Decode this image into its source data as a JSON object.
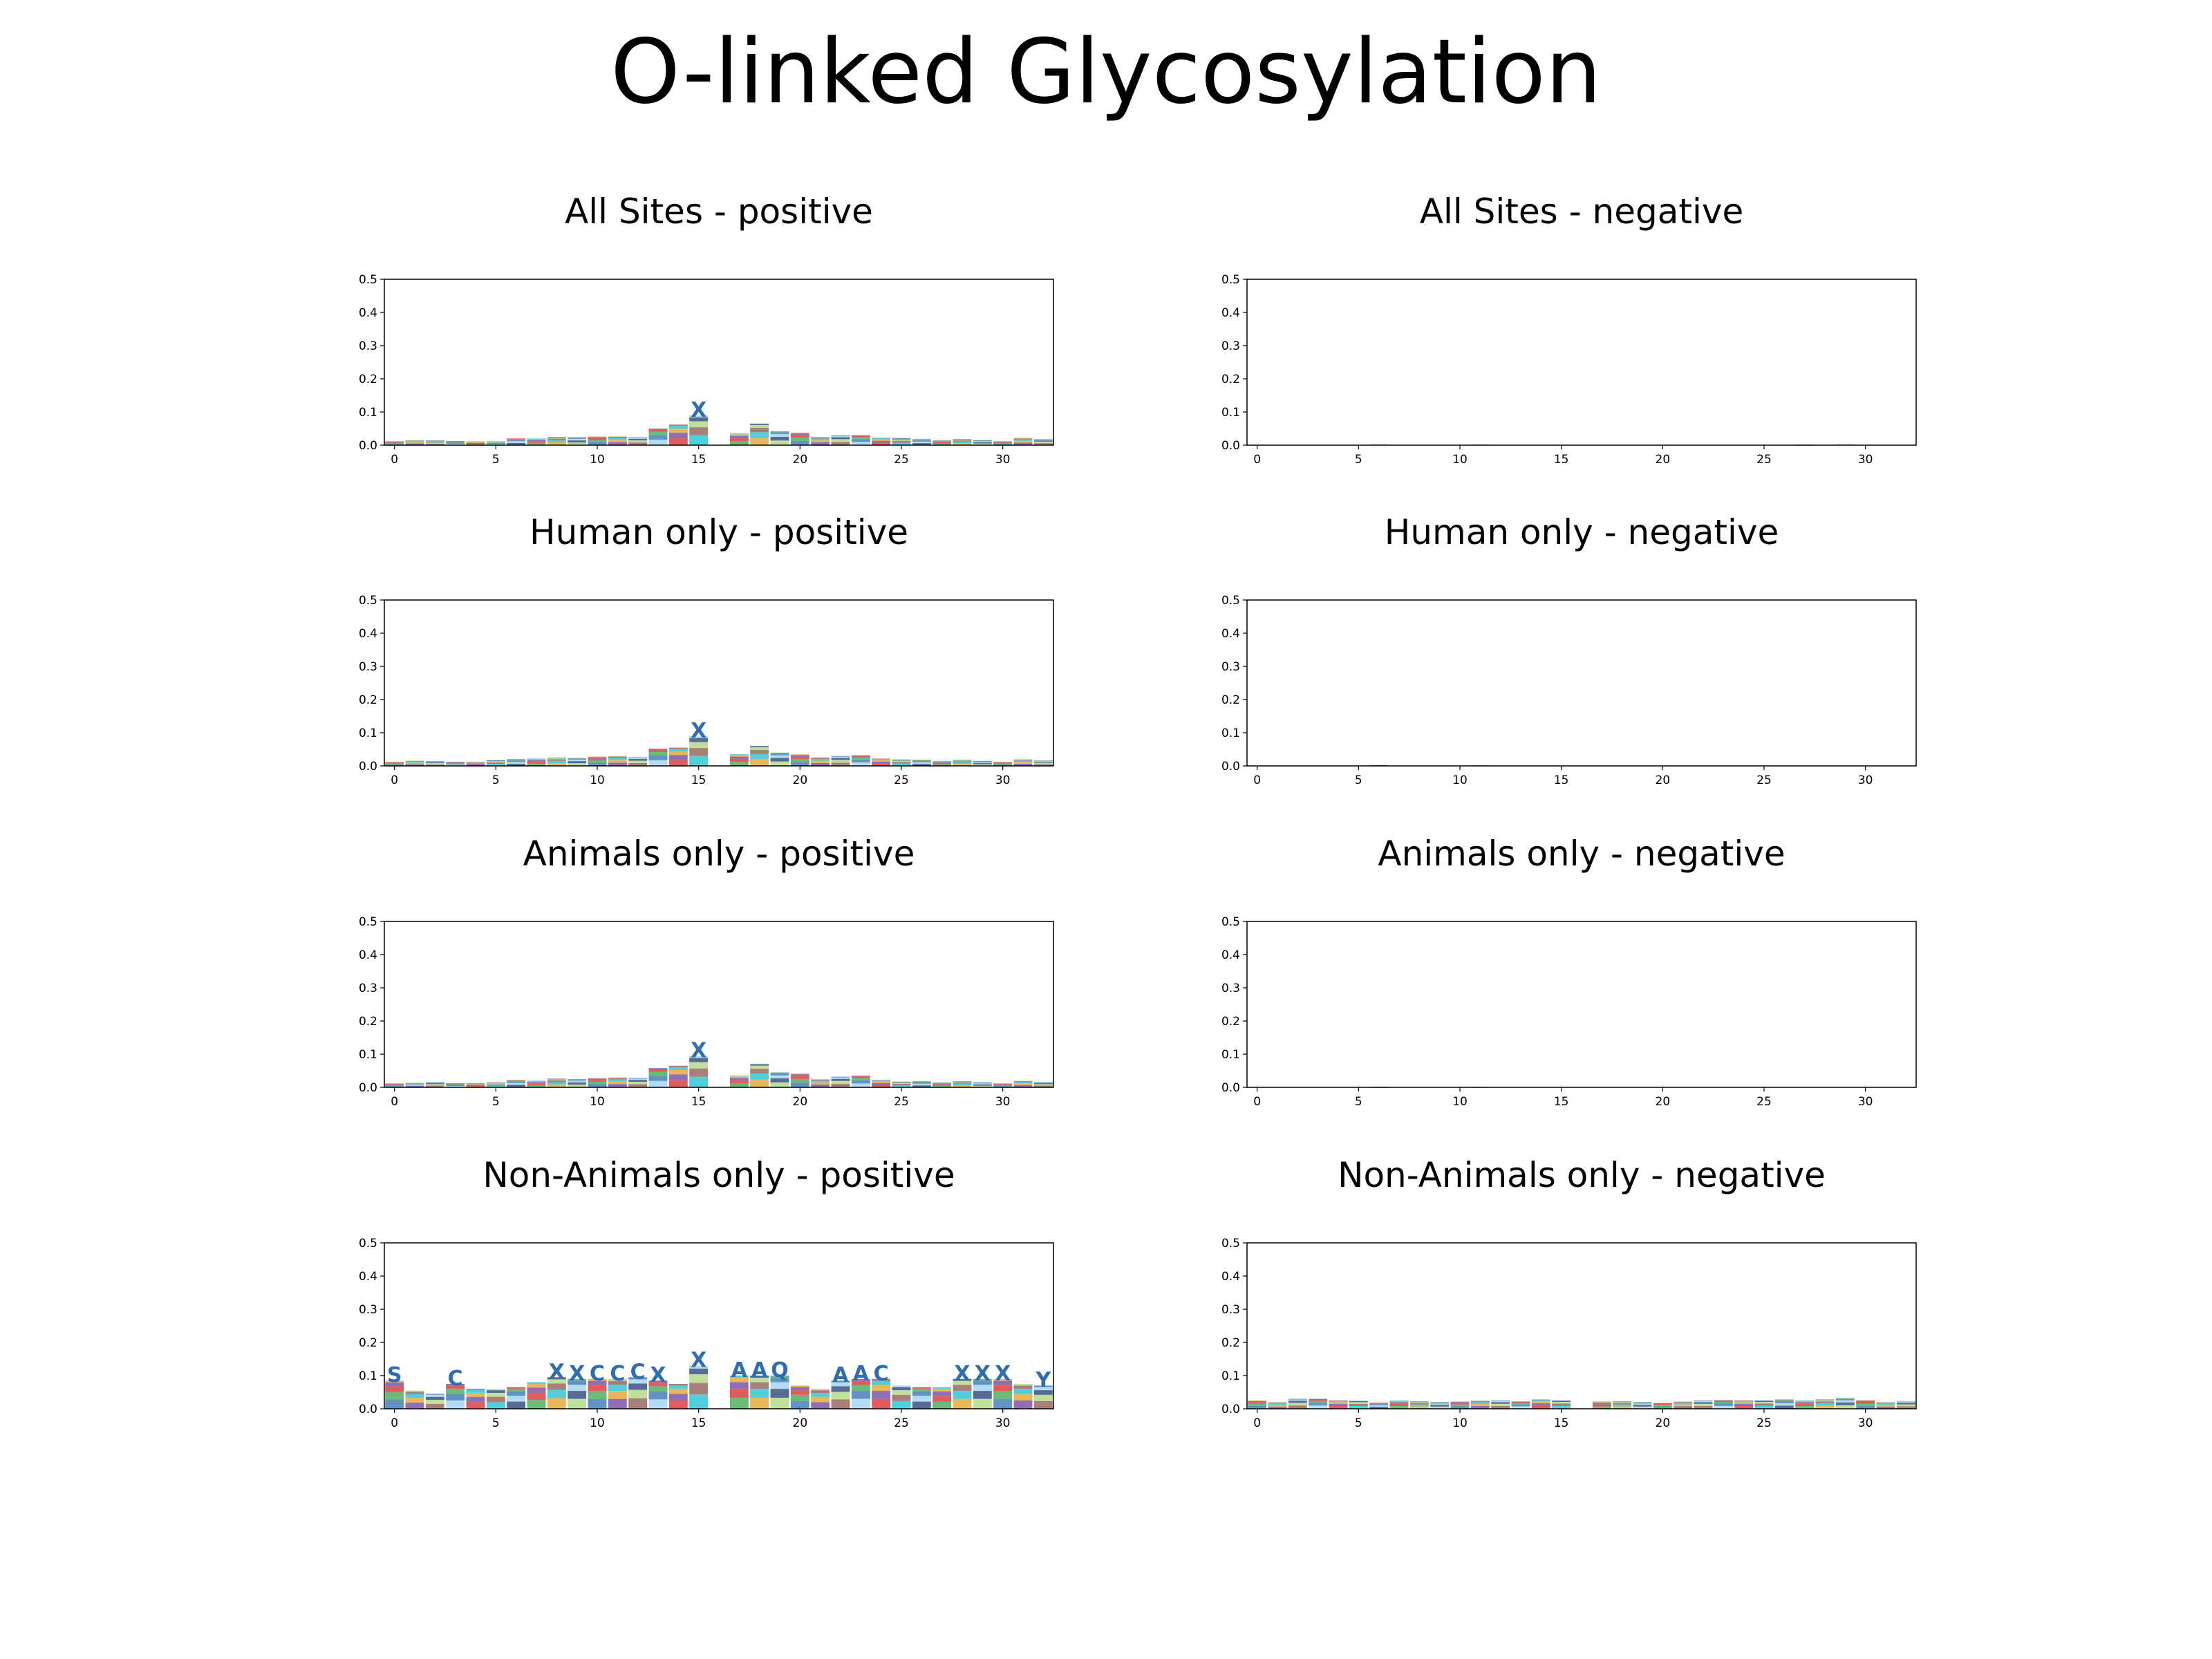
{
  "title": "O-linked Glycosylation",
  "chart_data": [
    {
      "type": "bar",
      "stacked": true,
      "title": "All Sites - positive",
      "x": [
        0,
        1,
        2,
        3,
        4,
        5,
        6,
        7,
        8,
        9,
        10,
        11,
        12,
        13,
        14,
        15,
        16,
        17,
        18,
        19,
        20,
        21,
        22,
        23,
        24,
        25,
        26,
        27,
        28,
        29,
        30,
        31,
        32
      ],
      "values": [
        0.012,
        0.015,
        0.014,
        0.012,
        0.011,
        0.012,
        0.02,
        0.02,
        0.025,
        0.024,
        0.026,
        0.027,
        0.024,
        0.05,
        0.062,
        0.09,
        0.0,
        0.035,
        0.065,
        0.042,
        0.038,
        0.025,
        0.03,
        0.03,
        0.022,
        0.022,
        0.018,
        0.015,
        0.018,
        0.015,
        0.012,
        0.022,
        0.018
      ],
      "xticks": [
        0,
        5,
        10,
        15,
        20,
        25,
        30
      ],
      "yticks": [
        0.0,
        0.1,
        0.2,
        0.3,
        0.4,
        0.5
      ],
      "xlim": [
        -0.5,
        32.5
      ],
      "ylim": [
        0,
        0.5
      ],
      "top_letters": {
        "15": "X"
      }
    },
    {
      "type": "bar",
      "stacked": true,
      "title": "All Sites - negative",
      "x": [
        0,
        1,
        2,
        3,
        4,
        5,
        6,
        7,
        8,
        9,
        10,
        11,
        12,
        13,
        14,
        15,
        16,
        17,
        18,
        19,
        20,
        21,
        22,
        23,
        24,
        25,
        26,
        27,
        28,
        29,
        30,
        31,
        32
      ],
      "values": [
        0.0,
        0.0,
        0.0,
        0.0,
        0.0,
        0.0,
        0.002,
        0.0,
        0.0,
        0.0,
        0.0,
        0.002,
        0.0,
        0.0,
        0.0,
        0.0,
        0.0,
        0.0,
        0.0,
        0.0,
        0.0,
        0.0,
        0.0,
        0.0,
        0.0,
        0.0,
        0.0,
        0.002,
        0.0,
        0.002,
        0.0,
        0.0,
        0.0
      ],
      "xticks": [
        0,
        5,
        10,
        15,
        20,
        25,
        30
      ],
      "yticks": [
        0.0,
        0.1,
        0.2,
        0.3,
        0.4,
        0.5
      ],
      "xlim": [
        -0.5,
        32.5
      ],
      "ylim": [
        0,
        0.5
      ]
    },
    {
      "type": "bar",
      "stacked": true,
      "title": "Human only - positive",
      "x": [
        0,
        1,
        2,
        3,
        4,
        5,
        6,
        7,
        8,
        9,
        10,
        11,
        12,
        13,
        14,
        15,
        16,
        17,
        18,
        19,
        20,
        21,
        22,
        23,
        24,
        25,
        26,
        27,
        28,
        29,
        30,
        31,
        32
      ],
      "values": [
        0.012,
        0.016,
        0.014,
        0.012,
        0.012,
        0.018,
        0.02,
        0.022,
        0.025,
        0.024,
        0.028,
        0.03,
        0.026,
        0.052,
        0.055,
        0.09,
        0.0,
        0.035,
        0.06,
        0.04,
        0.035,
        0.026,
        0.03,
        0.032,
        0.022,
        0.02,
        0.018,
        0.015,
        0.018,
        0.015,
        0.012,
        0.02,
        0.016
      ],
      "xticks": [
        0,
        5,
        10,
        15,
        20,
        25,
        30
      ],
      "yticks": [
        0.0,
        0.1,
        0.2,
        0.3,
        0.4,
        0.5
      ],
      "xlim": [
        -0.5,
        32.5
      ],
      "ylim": [
        0,
        0.5
      ],
      "top_letters": {
        "15": "X"
      }
    },
    {
      "type": "bar",
      "stacked": true,
      "title": "Human only - negative",
      "x": [
        0,
        1,
        2,
        3,
        4,
        5,
        6,
        7,
        8,
        9,
        10,
        11,
        12,
        13,
        14,
        15,
        16,
        17,
        18,
        19,
        20,
        21,
        22,
        23,
        24,
        25,
        26,
        27,
        28,
        29,
        30,
        31,
        32
      ],
      "values": [
        0.0,
        0.0,
        0.0,
        0.0,
        0.0,
        0.0,
        0.002,
        0.0,
        0.0,
        0.0,
        0.0,
        0.002,
        0.0,
        0.0,
        0.0,
        0.0,
        0.0,
        0.0,
        0.0,
        0.0,
        0.0,
        0.0,
        0.0,
        0.0,
        0.0,
        0.0,
        0.0,
        0.0,
        0.0,
        0.0,
        0.0,
        0.0,
        0.0
      ],
      "xticks": [
        0,
        5,
        10,
        15,
        20,
        25,
        30
      ],
      "yticks": [
        0.0,
        0.1,
        0.2,
        0.3,
        0.4,
        0.5
      ],
      "xlim": [
        -0.5,
        32.5
      ],
      "ylim": [
        0,
        0.5
      ]
    },
    {
      "type": "bar",
      "stacked": true,
      "title": "Animals only - positive",
      "x": [
        0,
        1,
        2,
        3,
        4,
        5,
        6,
        7,
        8,
        9,
        10,
        11,
        12,
        13,
        14,
        15,
        16,
        17,
        18,
        19,
        20,
        21,
        22,
        23,
        24,
        25,
        26,
        27,
        28,
        29,
        30,
        31,
        32
      ],
      "values": [
        0.012,
        0.014,
        0.016,
        0.012,
        0.012,
        0.015,
        0.022,
        0.02,
        0.026,
        0.025,
        0.028,
        0.03,
        0.028,
        0.058,
        0.065,
        0.095,
        0.0,
        0.035,
        0.07,
        0.045,
        0.042,
        0.025,
        0.032,
        0.035,
        0.022,
        0.018,
        0.018,
        0.015,
        0.018,
        0.015,
        0.012,
        0.02,
        0.016
      ],
      "xticks": [
        0,
        5,
        10,
        15,
        20,
        25,
        30
      ],
      "yticks": [
        0.0,
        0.1,
        0.2,
        0.3,
        0.4,
        0.5
      ],
      "xlim": [
        -0.5,
        32.5
      ],
      "ylim": [
        0,
        0.5
      ],
      "top_letters": {
        "15": "X"
      }
    },
    {
      "type": "bar",
      "stacked": true,
      "title": "Animals only - negative",
      "x": [
        0,
        1,
        2,
        3,
        4,
        5,
        6,
        7,
        8,
        9,
        10,
        11,
        12,
        13,
        14,
        15,
        16,
        17,
        18,
        19,
        20,
        21,
        22,
        23,
        24,
        25,
        26,
        27,
        28,
        29,
        30,
        31,
        32
      ],
      "values": [
        0.0,
        0.0,
        0.0,
        0.0,
        0.0,
        0.0,
        0.002,
        0.0,
        0.0,
        0.0,
        0.0,
        0.002,
        0.0,
        0.0,
        0.0,
        0.0,
        0.0,
        0.0,
        0.0,
        0.0,
        0.0,
        0.0,
        0.0,
        0.0,
        0.0,
        0.0,
        0.0,
        0.0,
        0.0,
        0.0,
        0.0,
        0.0,
        0.0
      ],
      "xticks": [
        0,
        5,
        10,
        15,
        20,
        25,
        30
      ],
      "yticks": [
        0.0,
        0.1,
        0.2,
        0.3,
        0.4,
        0.5
      ],
      "xlim": [
        -0.5,
        32.5
      ],
      "ylim": [
        0,
        0.5
      ]
    },
    {
      "type": "bar",
      "stacked": true,
      "title": "Non-Animals only - positive",
      "x": [
        0,
        1,
        2,
        3,
        4,
        5,
        6,
        7,
        8,
        9,
        10,
        11,
        12,
        13,
        14,
        15,
        16,
        17,
        18,
        19,
        20,
        21,
        22,
        23,
        24,
        25,
        26,
        27,
        28,
        29,
        30,
        31,
        32
      ],
      "values": [
        0.085,
        0.055,
        0.045,
        0.075,
        0.06,
        0.06,
        0.065,
        0.08,
        0.095,
        0.09,
        0.09,
        0.09,
        0.095,
        0.085,
        0.075,
        0.13,
        0.0,
        0.1,
        0.1,
        0.1,
        0.07,
        0.06,
        0.085,
        0.09,
        0.09,
        0.07,
        0.065,
        0.065,
        0.09,
        0.09,
        0.09,
        0.075,
        0.07
      ],
      "xticks": [
        0,
        5,
        10,
        15,
        20,
        25,
        30
      ],
      "yticks": [
        0.0,
        0.1,
        0.2,
        0.3,
        0.4,
        0.5
      ],
      "xlim": [
        -0.5,
        32.5
      ],
      "ylim": [
        0,
        0.5
      ],
      "top_letters": {
        "0": "S",
        "3": "C",
        "8": "X",
        "9": "X",
        "10": "C",
        "11": "C",
        "12": "C",
        "13": "X",
        "15": "X",
        "17": "A",
        "18": "A",
        "19": "Q",
        "22": "A",
        "23": "A",
        "24": "C",
        "28": "X",
        "29": "X",
        "30": "X",
        "32": "Y"
      }
    },
    {
      "type": "bar",
      "stacked": true,
      "title": "Non-Animals only - negative",
      "x": [
        0,
        1,
        2,
        3,
        4,
        5,
        6,
        7,
        8,
        9,
        10,
        11,
        12,
        13,
        14,
        15,
        16,
        17,
        18,
        19,
        20,
        21,
        22,
        23,
        24,
        25,
        26,
        27,
        28,
        29,
        30,
        31,
        32
      ],
      "values": [
        0.025,
        0.02,
        0.03,
        0.03,
        0.025,
        0.025,
        0.018,
        0.025,
        0.022,
        0.02,
        0.022,
        0.025,
        0.025,
        0.022,
        0.028,
        0.026,
        0.0,
        0.022,
        0.022,
        0.02,
        0.018,
        0.022,
        0.025,
        0.026,
        0.025,
        0.026,
        0.028,
        0.025,
        0.028,
        0.032,
        0.026,
        0.02,
        0.022
      ],
      "xticks": [
        0,
        5,
        10,
        15,
        20,
        25,
        30
      ],
      "yticks": [
        0.0,
        0.1,
        0.2,
        0.3,
        0.4,
        0.5
      ],
      "xlim": [
        -0.5,
        32.5
      ],
      "ylim": [
        0,
        0.5
      ]
    }
  ]
}
